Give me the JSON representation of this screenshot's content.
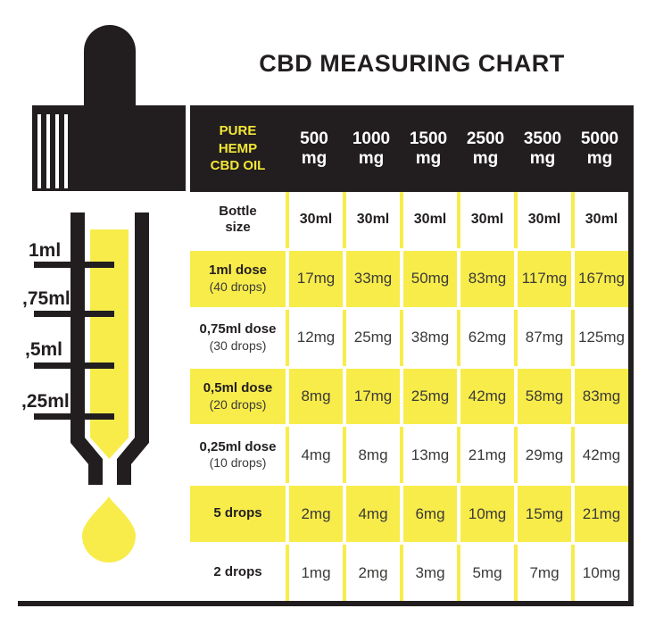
{
  "title": "CBD MEASURING CHART",
  "colors": {
    "ink_black": "#221e1f",
    "highlight_yellow": "#f8ec4b",
    "corner_header_yellow": "#f2e636",
    "header_text_white": "#ffffff",
    "value_text": "#3b3a39"
  },
  "dropper": {
    "scale_labels": [
      "1ml",
      ",75ml",
      ",5ml",
      ",25ml"
    ]
  },
  "table": {
    "corner_header": "PURE HEMP CBD OIL",
    "corner_header_lines": [
      "PURE",
      "HEMP",
      "CBD OIL"
    ],
    "columns": [
      {
        "strength": "500",
        "unit": "mg"
      },
      {
        "strength": "1000",
        "unit": "mg"
      },
      {
        "strength": "1500",
        "unit": "mg"
      },
      {
        "strength": "2500",
        "unit": "mg"
      },
      {
        "strength": "3500",
        "unit": "mg"
      },
      {
        "strength": "5000",
        "unit": "mg"
      }
    ],
    "rows": [
      {
        "label": "Bottle",
        "label_line2": "size",
        "sublabel": "",
        "highlight": false,
        "bold_values": true,
        "values": [
          "30ml",
          "30ml",
          "30ml",
          "30ml",
          "30ml",
          "30ml"
        ]
      },
      {
        "label": "1ml dose",
        "label_line2": "",
        "sublabel": "(40 drops)",
        "highlight": true,
        "bold_values": false,
        "values": [
          "17mg",
          "33mg",
          "50mg",
          "83mg",
          "117mg",
          "167mg"
        ]
      },
      {
        "label": "0,75ml dose",
        "label_line2": "",
        "sublabel": "(30 drops)",
        "highlight": false,
        "bold_values": false,
        "values": [
          "12mg",
          "25mg",
          "38mg",
          "62mg",
          "87mg",
          "125mg"
        ]
      },
      {
        "label": "0,5ml dose",
        "label_line2": "",
        "sublabel": "(20 drops)",
        "highlight": true,
        "bold_values": false,
        "values": [
          "8mg",
          "17mg",
          "25mg",
          "42mg",
          "58mg",
          "83mg"
        ]
      },
      {
        "label": "0,25ml dose",
        "label_line2": "",
        "sublabel": "(10 drops)",
        "highlight": false,
        "bold_values": false,
        "values": [
          "4mg",
          "8mg",
          "13mg",
          "21mg",
          "29mg",
          "42mg"
        ]
      },
      {
        "label": "5 drops",
        "label_line2": "",
        "sublabel": "",
        "highlight": true,
        "bold_values": false,
        "values": [
          "2mg",
          "4mg",
          "6mg",
          "10mg",
          "15mg",
          "21mg"
        ]
      },
      {
        "label": "2 drops",
        "label_line2": "",
        "sublabel": "",
        "highlight": false,
        "bold_values": false,
        "values": [
          "1mg",
          "2mg",
          "3mg",
          "5mg",
          "7mg",
          "10mg"
        ]
      }
    ]
  },
  "chart_data": {
    "type": "table",
    "title": "CBD MEASURING CHART",
    "columns": [
      "PURE HEMP CBD OIL",
      "500 mg",
      "1000 mg",
      "1500 mg",
      "2500 mg",
      "3500 mg",
      "5000 mg"
    ],
    "rows": [
      [
        "Bottle size",
        "30ml",
        "30ml",
        "30ml",
        "30ml",
        "30ml",
        "30ml"
      ],
      [
        "1ml dose (40 drops)",
        "17mg",
        "33mg",
        "50mg",
        "83mg",
        "117mg",
        "167mg"
      ],
      [
        "0,75ml dose (30 drops)",
        "12mg",
        "25mg",
        "38mg",
        "62mg",
        "87mg",
        "125mg"
      ],
      [
        "0,5ml dose (20 drops)",
        "8mg",
        "17mg",
        "25mg",
        "42mg",
        "58mg",
        "83mg"
      ],
      [
        "0,25ml dose (10 drops)",
        "4mg",
        "8mg",
        "13mg",
        "21mg",
        "29mg",
        "42mg"
      ],
      [
        "5 drops",
        "2mg",
        "4mg",
        "6mg",
        "10mg",
        "15mg",
        "21mg"
      ],
      [
        "2 drops",
        "1mg",
        "2mg",
        "3mg",
        "5mg",
        "7mg",
        "10mg"
      ]
    ],
    "dropper_scale_labels": [
      "1ml",
      ",75ml",
      ",5ml",
      ",25ml"
    ],
    "layout": {
      "highlighted_rows": [
        1,
        3,
        5
      ],
      "highlight_color": "#f8ec4b",
      "header_background": "#221e1f"
    }
  }
}
